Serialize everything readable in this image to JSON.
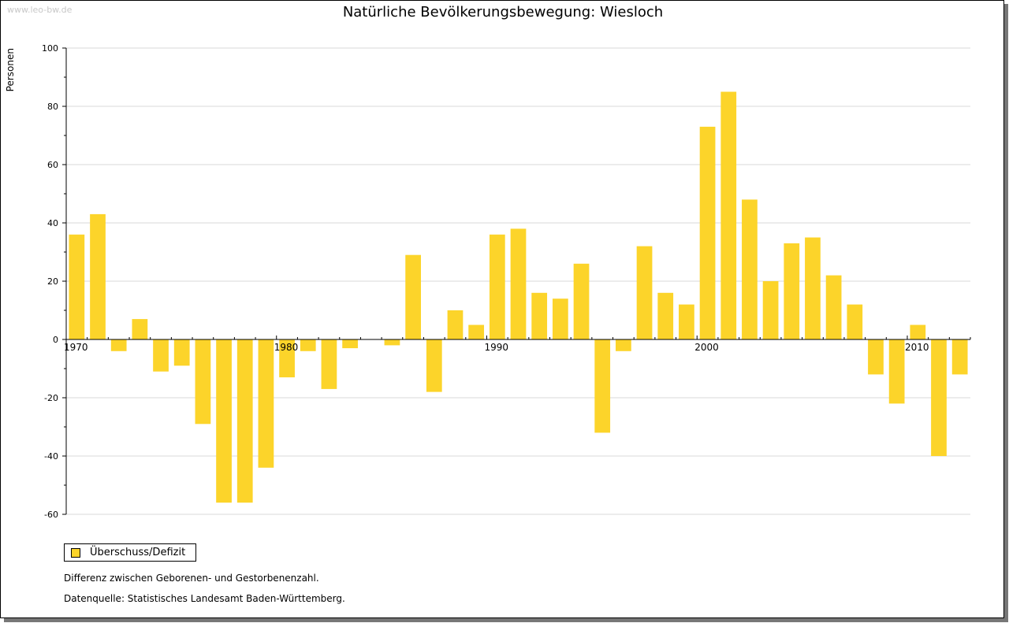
{
  "watermark": "www.leo-bw.de",
  "note1": "Differenz zwischen Geborenen- und Gestorbenenzahl.",
  "note2": "Datenquelle: Statistisches Landesamt Baden-Württemberg.",
  "chart_data": {
    "type": "bar",
    "title": "Natürliche Bevölkerungsbewegung: Wiesloch",
    "ylabel": "Personen",
    "xlabel": "",
    "ylim": [
      -60,
      100
    ],
    "yticks": [
      -60,
      -40,
      -20,
      0,
      20,
      40,
      60,
      80,
      100
    ],
    "xticks": [
      1970,
      1980,
      1990,
      2000,
      2010
    ],
    "grid": true,
    "legend_position": "bottom-left",
    "color": "#fcd42a",
    "series": [
      {
        "name": "Überschuss/Defizit",
        "x": [
          1970,
          1971,
          1972,
          1973,
          1974,
          1975,
          1976,
          1977,
          1978,
          1979,
          1980,
          1981,
          1982,
          1983,
          1984,
          1985,
          1986,
          1987,
          1988,
          1989,
          1990,
          1991,
          1992,
          1993,
          1994,
          1995,
          1996,
          1997,
          1998,
          1999,
          2000,
          2001,
          2002,
          2003,
          2004,
          2005,
          2006,
          2007,
          2008,
          2009,
          2010,
          2011,
          2012
        ],
        "values": [
          36,
          43,
          -4,
          7,
          -11,
          -9,
          -29,
          -56,
          -56,
          -44,
          -13,
          -4,
          -17,
          -3,
          0,
          -2,
          29,
          -18,
          10,
          5,
          36,
          38,
          16,
          14,
          26,
          -32,
          -4,
          32,
          16,
          12,
          73,
          85,
          48,
          20,
          33,
          35,
          22,
          12,
          -12,
          -22,
          5,
          -40,
          -12
        ]
      }
    ]
  }
}
